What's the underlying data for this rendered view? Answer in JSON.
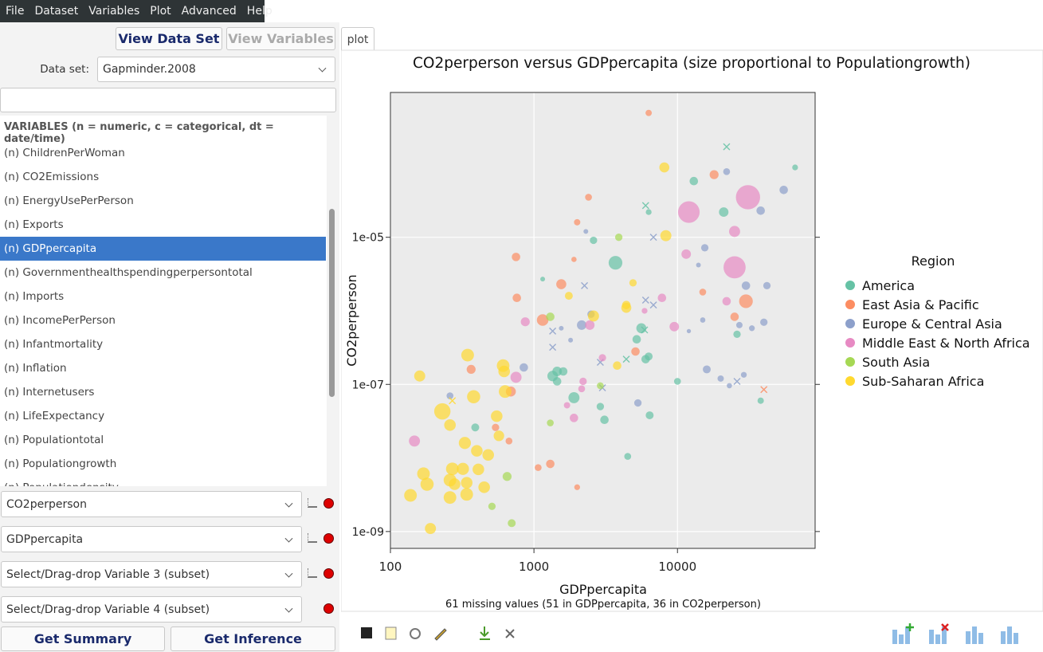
{
  "menu": [
    "File",
    "Dataset",
    "Variables",
    "Plot",
    "Advanced",
    "Help"
  ],
  "buttons": {
    "view_data_set": "View Data Set",
    "view_variables": "View Variables"
  },
  "data_set": {
    "label": "Data set:",
    "value": "Gapminder.2008"
  },
  "variables": {
    "header": "VARIABLES (n = numeric, c = categorical, dt = date/time)",
    "items": [
      "(n) ChildrenPerWoman",
      "(n) CO2Emissions",
      "(n) EnergyUsePerPerson",
      "(n) Exports",
      "(n) GDPpercapita",
      "(n) Governmenthealthspendingperpersontotal",
      "(n) Imports",
      "(n) IncomePerPerson",
      "(n) Infantmortality",
      "(n) Inflation",
      "(n) Internetusers",
      "(n) LifeExpectancy",
      "(n) Populationtotal",
      "(n) Populationgrowth",
      "(n) Populationdensity"
    ],
    "selected": 4
  },
  "variable_selectors": [
    "CO2perperson",
    "GDPpercapita",
    "Select/Drag-drop Variable 3 (subset)",
    "Select/Drag-drop Variable 4 (subset)"
  ],
  "actions": [
    "Get Summary",
    "Get Inference"
  ],
  "tab": "plot",
  "chart_data": {
    "type": "scatter",
    "title": "CO2perperson versus GDPpercapita (size proportional to Populationgrowth)",
    "x_label": "GDPpercapita",
    "y_label": "CO2perperson",
    "note": "61 missing values (51 in GDPpercapita, 36 in CO2perperson)",
    "legend_title": "Region",
    "x_log": true,
    "y_log": true,
    "grid": true,
    "xlim": [
      100,
      91000
    ],
    "ylim": [
      5.9e-10,
      0.00093
    ],
    "xticks": [
      100,
      1000,
      10000
    ],
    "yticks": [
      {
        "value": 1e-09,
        "label": "1e-09"
      },
      {
        "value": 1e-07,
        "label": "1e-07"
      },
      {
        "value": 1e-05,
        "label": "1e-05"
      }
    ],
    "series": [
      {
        "name": "America",
        "color": "#66c2a5",
        "x": [
          66000,
          22000,
          13000,
          21000,
          6000,
          6300,
          2600,
          3700,
          1150,
          5600,
          5900,
          5200,
          6300,
          6000,
          4400,
          26000,
          10000,
          38000,
          1450,
          1600,
          1350,
          1450,
          1900,
          2900,
          3100,
          6400,
          390,
          4500
        ],
        "values": [
          8.9e-05,
          0.00017,
          5.8e-05,
          2.2e-05,
          2.7e-05,
          2.2e-05,
          9.1e-06,
          4.5e-06,
          2.7e-06,
          5.8e-07,
          5.5e-07,
          4.1e-07,
          2.4e-07,
          2.2e-07,
          2.2e-07,
          4.8e-07,
          1.1e-07,
          6e-08,
          1.5e-07,
          1.5e-07,
          1.3e-07,
          1.1e-07,
          6.6e-08,
          5e-08,
          3.3e-08,
          3.8e-08,
          2.6e-08,
          1.05e-08
        ],
        "sizes": [
          0.5,
          null,
          1,
          1.2,
          null,
          0.5,
          0.8,
          2,
          0.3,
          1.3,
          null,
          1,
          0.9,
          1,
          null,
          0.8,
          0.7,
          0.6,
          1.2,
          1,
          1.4,
          1,
          1.5,
          0.8,
          1,
          0.9,
          0.9,
          0.7
        ]
      },
      {
        "name": "East Asia & Pacific",
        "color": "#fc8d62",
        "x": [
          6300,
          18000,
          2400,
          2000,
          750,
          1900,
          1550,
          760,
          15000,
          30000,
          25000,
          1150,
          5100,
          365,
          690,
          40000,
          540,
          670,
          1300,
          1070,
          2000
        ],
        "values": [
          0.00049,
          7.1e-05,
          3.5e-05,
          1.6e-05,
          5.4e-06,
          5e-06,
          2.3e-06,
          1.5e-06,
          1.8e-06,
          1.35e-06,
          8.3e-07,
          7.5e-07,
          2.8e-07,
          1.6e-07,
          8e-08,
          8.5e-08,
          2.6e-08,
          1.7e-08,
          8.3e-09,
          7.4e-09,
          4e-09
        ],
        "sizes": [
          0.6,
          1.1,
          0.7,
          0.6,
          1,
          0.4,
          1.3,
          1,
          0.7,
          2,
          1,
          1.6,
          1,
          1.1,
          1.3,
          null,
          0.8,
          0.7,
          1,
          0.7,
          0.5
        ]
      },
      {
        "name": "Europe & Central Asia",
        "color": "#8da0cb",
        "x": [
          22000,
          55000,
          38000,
          6800,
          2300,
          15500,
          14000,
          30000,
          42000,
          2250,
          6000,
          6800,
          15000,
          40000,
          27000,
          33000,
          2150,
          2500,
          1550,
          1350,
          1800,
          1350,
          12000,
          850,
          16000,
          20000,
          29000,
          23000,
          26000,
          3000,
          2900,
          260,
          5300
        ],
        "values": [
          7.8e-05,
          4.4e-05,
          2.3e-05,
          1e-05,
          1.2e-05,
          7.2e-06,
          4.2e-06,
          2.2e-06,
          2.2e-06,
          2.2e-06,
          1.4e-06,
          1.2e-06,
          7.5e-07,
          7e-07,
          6.4e-07,
          5.8e-07,
          6.4e-07,
          9e-07,
          5.8e-07,
          5.3e-07,
          4e-07,
          3.2e-07,
          5.3e-07,
          1.7e-07,
          1.6e-07,
          1.2e-07,
          1.35e-07,
          9.6e-08,
          1.1e-07,
          9e-08,
          2e-07,
          7e-08,
          5.6e-08
        ],
        "sizes": [
          0.7,
          1,
          1,
          null,
          0.3,
          0.8,
          0.3,
          1,
          0.8,
          null,
          null,
          null,
          0.4,
          0.8,
          0.6,
          0.5,
          1.2,
          0.8,
          0.3,
          null,
          0.3,
          null,
          0.2,
          1,
          0.9,
          0.6,
          0.5,
          0.4,
          null,
          null,
          null,
          0.7,
          0.8
        ]
      },
      {
        "name": "Middle East & North Africa",
        "color": "#e78ac3",
        "x": [
          31000,
          12000,
          25000,
          25000,
          11500,
          7800,
          9500,
          22000,
          2450,
          870,
          3000,
          5900,
          2200,
          2150,
          1700,
          1900,
          750,
          147
        ],
        "values": [
          3.5e-05,
          2.2e-05,
          3.9e-06,
          1.2e-05,
          5.9e-06,
          1.5e-06,
          6.1e-07,
          1.35e-06,
          6.4e-07,
          7.1e-07,
          2.3e-07,
          1e-06,
          1.1e-07,
          8.7e-08,
          5.2e-08,
          3.5e-08,
          1.25e-07,
          1.7e-08
        ],
        "sizes": [
          4,
          3.5,
          3.6,
          1.5,
          1.2,
          1,
          1.2,
          1,
          1.2,
          1.1,
          0.8,
          0.5,
          0.8,
          0.7,
          0.6,
          1,
          1.5,
          1.5
        ]
      },
      {
        "name": "South Asia",
        "color": "#a6d854",
        "x": [
          3900,
          1300,
          2900,
          1300,
          650,
          510,
          700
        ],
        "values": [
          1e-05,
          8.3e-07,
          9.6e-08,
          3e-08,
          5.6e-09,
          2.2e-09,
          1.3e-09
        ],
        "sizes": [
          0.8,
          1,
          0.7,
          0.7,
          1.1,
          0.8,
          0.9
        ]
      },
      {
        "name": "Sub-Saharan Africa",
        "color": "#ffd92f",
        "x": [
          8100,
          8300,
          4900,
          4400,
          4400,
          2600,
          1750,
          3800,
          345,
          160,
          610,
          620,
          630,
          380,
          230,
          260,
          550,
          570,
          330,
          400,
          480,
          270,
          320,
          410,
          170,
          260,
          340,
          180,
          280,
          450,
          340,
          260,
          138,
          190,
          270
        ],
        "values": [
          8.9e-05,
          1.05e-05,
          2.4e-06,
          1.2e-06,
          1.1e-06,
          8.5e-07,
          1.6e-06,
          1.8e-07,
          2.5e-07,
          1.3e-07,
          1.8e-07,
          1.5e-07,
          8e-08,
          6.8e-08,
          4.3e-08,
          2.8e-08,
          3.7e-08,
          2e-08,
          1.6e-08,
          1.25e-08,
          1.1e-08,
          7.1e-09,
          7.1e-09,
          7e-09,
          6.1e-09,
          5e-09,
          4.6e-09,
          4.4e-09,
          4.4e-09,
          4e-09,
          3.2e-09,
          2.9e-09,
          3.1e-09,
          1.1e-09,
          6e-08
        ],
        "sizes": [
          1.3,
          1.5,
          0.8,
          1,
          1.3,
          1.5,
          0.9,
          1,
          1.8,
          1.5,
          1.8,
          1.6,
          1.8,
          1.9,
          2.5,
          1.6,
          1.6,
          1.4,
          1.7,
          1.6,
          1.6,
          1.8,
          1.7,
          1.6,
          1.8,
          1.8,
          1.6,
          1.9,
          1.6,
          1.6,
          1.8,
          1.8,
          1.8,
          1.5,
          null
        ]
      }
    ]
  }
}
